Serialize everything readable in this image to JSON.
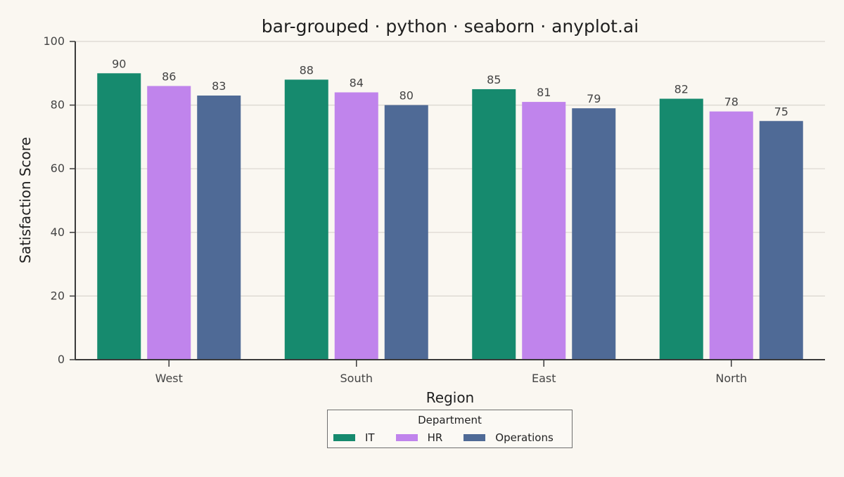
{
  "chart_data": {
    "type": "bar",
    "title": "bar-grouped · python · seaborn · anyplot.ai",
    "xlabel": "Region",
    "ylabel": "Satisfaction Score",
    "categories": [
      "West",
      "South",
      "East",
      "North"
    ],
    "series": [
      {
        "name": "IT",
        "color": "#168A6E",
        "values": [
          90,
          88,
          85,
          82
        ]
      },
      {
        "name": "HR",
        "color": "#C084EC",
        "values": [
          86,
          84,
          81,
          78
        ]
      },
      {
        "name": "Operations",
        "color": "#4F6A96",
        "values": [
          83,
          80,
          79,
          75
        ]
      }
    ],
    "ylim": [
      0,
      100
    ],
    "yticks": [
      0,
      20,
      40,
      60,
      80,
      100
    ],
    "grid": "horizontal",
    "legend": {
      "title": "Department",
      "placement": "bottom-center"
    },
    "data_labels": true
  }
}
